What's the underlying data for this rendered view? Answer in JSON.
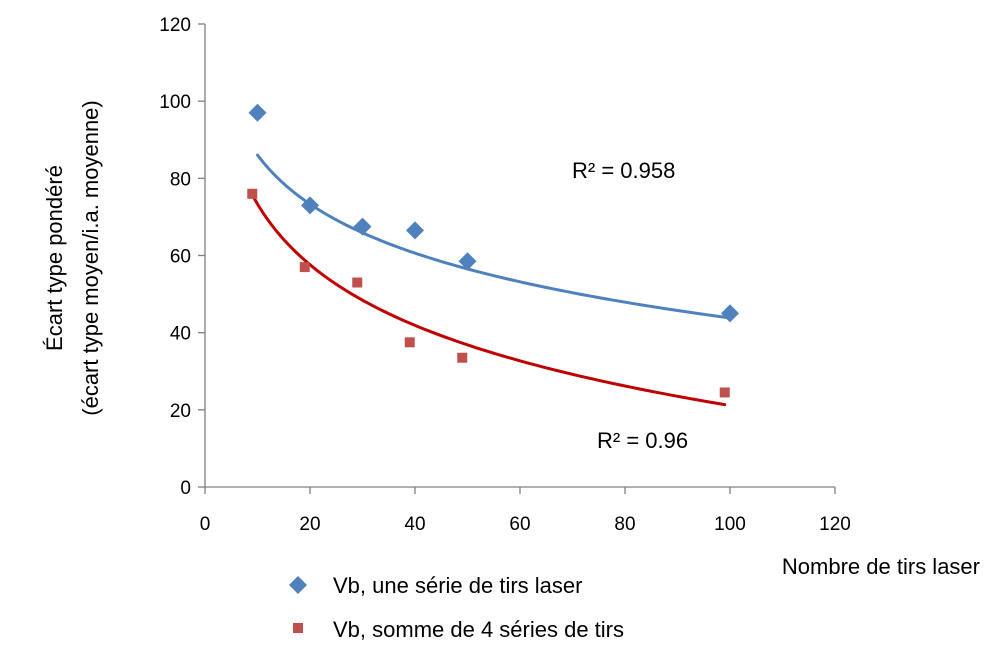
{
  "chart_data": {
    "type": "scatter",
    "xlabel": "Nombre de tirs laser",
    "ylabel_lines": [
      "Écart type pondéré",
      "(écart type moyen/i.a. moyenne)"
    ],
    "xlim": [
      0,
      120
    ],
    "ylim": [
      0,
      120
    ],
    "x_ticks": [
      0,
      20,
      40,
      60,
      80,
      100,
      120
    ],
    "y_ticks": [
      0,
      20,
      40,
      60,
      80,
      100,
      120
    ],
    "grid": false,
    "legend_position": "bottom-left",
    "series": [
      {
        "name": "Vb, une série de tirs laser",
        "marker": "diamond",
        "color": "#4F81BD",
        "trend_color": "#4F81BD",
        "x": [
          10,
          20,
          30,
          40,
          50,
          100
        ],
        "y": [
          97,
          73,
          67.5,
          66.5,
          58.5,
          45
        ],
        "trend": {
          "type": "log",
          "a": 128.27,
          "b": -18.34,
          "x_range": [
            10,
            100
          ]
        },
        "r2_label": "R² = 0.958"
      },
      {
        "name": "Vb, somme de 4 séries de tirs",
        "marker": "square",
        "color": "#C0504D",
        "trend_color": "#C00000",
        "x": [
          9,
          19,
          29,
          39,
          49,
          99
        ],
        "y": [
          76,
          57,
          53,
          37.5,
          33.5,
          24.5
        ],
        "trend": {
          "type": "log",
          "a": 125.52,
          "b": -22.67,
          "x_range": [
            9,
            99
          ]
        },
        "r2_label": "R² = 0.96"
      }
    ]
  }
}
